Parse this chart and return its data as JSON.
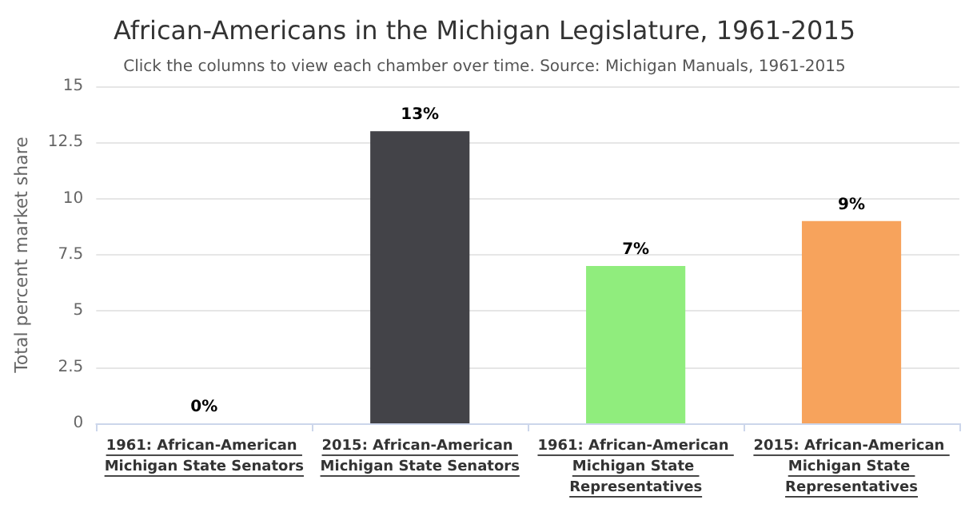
{
  "chart_data": {
    "type": "bar",
    "title": "African-Americans in the Michigan Legislature, 1961-2015",
    "subtitle": "Click the columns to view each chamber over time. Source: Michigan Manuals, 1961-2015",
    "ylabel": "Total percent market share",
    "categories": [
      "1961: African-American Michigan State Senators",
      "2015: African-American Michigan State Senators",
      "1961: African-American Michigan State Representatives",
      "2015: African-American Michigan State Representatives"
    ],
    "values": [
      0,
      13,
      7,
      9
    ],
    "value_labels": [
      "0%",
      "13%",
      "7%",
      "9%"
    ],
    "colors": [
      "#7cb5ec",
      "#434348",
      "#90ed7d",
      "#f7a35c"
    ],
    "ylim": [
      0,
      15
    ],
    "yticks": [
      0,
      2.5,
      5,
      7.5,
      10,
      12.5,
      15
    ],
    "grid": "y"
  }
}
